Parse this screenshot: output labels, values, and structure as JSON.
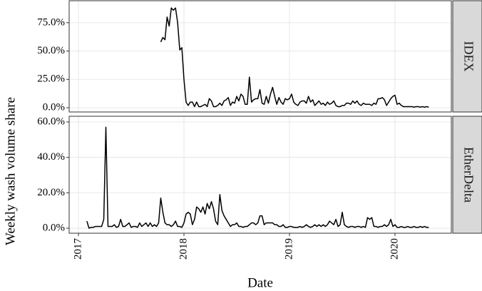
{
  "chart_data": [
    {
      "type": "line",
      "facet": "IDEX",
      "ylabel": "Weekly wash volume share",
      "color": "#000000",
      "grid": true,
      "xlim": [
        2016.912,
        2020.534
      ],
      "xticks": [
        2017,
        2018,
        2019,
        2020
      ],
      "ylim": [
        -3.75,
        94.4
      ],
      "yticks": [
        {
          "value": 0,
          "label": "0.0%"
        },
        {
          "value": 25,
          "label": "25.0%"
        },
        {
          "value": 50,
          "label": "50.0%"
        },
        {
          "value": 75,
          "label": "75.0%"
        }
      ],
      "x": [
        2017.78,
        2017.8,
        2017.82,
        2017.84,
        2017.86,
        2017.88,
        2017.9,
        2017.92,
        2017.94,
        2017.96,
        2017.98,
        2018,
        2018.02,
        2018.04,
        2018.06,
        2018.08,
        2018.1,
        2018.12,
        2018.14,
        2018.16,
        2018.18,
        2018.2,
        2018.22,
        2018.24,
        2018.26,
        2018.28,
        2018.3,
        2018.32,
        2018.34,
        2018.36,
        2018.38,
        2018.4,
        2018.42,
        2018.44,
        2018.46,
        2018.48,
        2018.5,
        2018.52,
        2018.54,
        2018.56,
        2018.58,
        2018.6,
        2018.62,
        2018.64,
        2018.66,
        2018.68,
        2018.7,
        2018.72,
        2018.74,
        2018.76,
        2018.78,
        2018.8,
        2018.82,
        2018.84,
        2018.86,
        2018.88,
        2018.9,
        2018.92,
        2018.94,
        2018.96,
        2018.98,
        2019,
        2019.02,
        2019.04,
        2019.06,
        2019.08,
        2019.1,
        2019.12,
        2019.14,
        2019.16,
        2019.18,
        2019.2,
        2019.22,
        2019.24,
        2019.26,
        2019.28,
        2019.3,
        2019.32,
        2019.34,
        2019.36,
        2019.38,
        2019.4,
        2019.42,
        2019.44,
        2019.46,
        2019.48,
        2019.5,
        2019.52,
        2019.54,
        2019.56,
        2019.58,
        2019.6,
        2019.62,
        2019.64,
        2019.66,
        2019.68,
        2019.7,
        2019.72,
        2019.74,
        2019.76,
        2019.78,
        2019.8,
        2019.82,
        2019.84,
        2019.86,
        2019.88,
        2019.9,
        2019.92,
        2019.94,
        2019.96,
        2019.98,
        2020,
        2020.02,
        2020.04,
        2020.06,
        2020.08,
        2020.1,
        2020.12,
        2020.14,
        2020.16,
        2020.18,
        2020.2,
        2020.22,
        2020.24,
        2020.26,
        2020.28,
        2020.3,
        2020.32
      ],
      "values": [
        58,
        62,
        60,
        80,
        72,
        88,
        86,
        88,
        75,
        51,
        53,
        25,
        5,
        2,
        5,
        5,
        1,
        5,
        1,
        1,
        2,
        3,
        1,
        8,
        6,
        1,
        1,
        2,
        4,
        2,
        6,
        7,
        9,
        2,
        5,
        4,
        10,
        6,
        12,
        10,
        3,
        3,
        27,
        5,
        7,
        8,
        8,
        16,
        4,
        3,
        10,
        4,
        12,
        18,
        10,
        3,
        9,
        5,
        3,
        8,
        7,
        8,
        12,
        5,
        3,
        2,
        5,
        6,
        6,
        4,
        10,
        5,
        7,
        2,
        4,
        6,
        3,
        4,
        2,
        5,
        3,
        4,
        6,
        2,
        1,
        1,
        2,
        2,
        4,
        4,
        3,
        6,
        4,
        6,
        3,
        2,
        4,
        3,
        3,
        3,
        2,
        4,
        3,
        8,
        8,
        9,
        7,
        2,
        5,
        8,
        10,
        11,
        3,
        4,
        2,
        1,
        1,
        1,
        1,
        1,
        0.5,
        1,
        1,
        0.5,
        1,
        0.5,
        1,
        0.5
      ]
    },
    {
      "type": "line",
      "facet": "EtherDelta",
      "xlabel": "Date",
      "color": "#000000",
      "grid": true,
      "xlim": [
        2016.912,
        2020.534
      ],
      "xticks": [
        2017,
        2018,
        2019,
        2020
      ],
      "ylim": [
        -2.82,
        63.2
      ],
      "yticks": [
        {
          "value": 0,
          "label": "0.0%"
        },
        {
          "value": 20,
          "label": "20.0%"
        },
        {
          "value": 40,
          "label": "40.0%"
        },
        {
          "value": 60,
          "label": "60.0%"
        }
      ],
      "x": [
        2017.08,
        2017.1,
        2017.12,
        2017.14,
        2017.16,
        2017.18,
        2017.2,
        2017.22,
        2017.24,
        2017.26,
        2017.28,
        2017.3,
        2017.32,
        2017.34,
        2017.36,
        2017.38,
        2017.4,
        2017.42,
        2017.44,
        2017.46,
        2017.48,
        2017.5,
        2017.52,
        2017.54,
        2017.56,
        2017.58,
        2017.6,
        2017.62,
        2017.64,
        2017.66,
        2017.68,
        2017.7,
        2017.72,
        2017.74,
        2017.76,
        2017.78,
        2017.8,
        2017.82,
        2017.84,
        2017.86,
        2017.88,
        2017.9,
        2017.92,
        2017.94,
        2017.96,
        2017.98,
        2018,
        2018.02,
        2018.04,
        2018.06,
        2018.08,
        2018.1,
        2018.12,
        2018.14,
        2018.16,
        2018.18,
        2018.2,
        2018.22,
        2018.24,
        2018.26,
        2018.28,
        2018.3,
        2018.32,
        2018.34,
        2018.36,
        2018.38,
        2018.4,
        2018.42,
        2018.44,
        2018.46,
        2018.48,
        2018.5,
        2018.52,
        2018.54,
        2018.56,
        2018.58,
        2018.6,
        2018.62,
        2018.64,
        2018.66,
        2018.68,
        2018.7,
        2018.72,
        2018.74,
        2018.76,
        2018.78,
        2018.8,
        2018.82,
        2018.84,
        2018.86,
        2018.88,
        2018.9,
        2018.92,
        2018.94,
        2018.96,
        2018.98,
        2019,
        2019.02,
        2019.04,
        2019.06,
        2019.08,
        2019.1,
        2019.12,
        2019.14,
        2019.16,
        2019.18,
        2019.2,
        2019.22,
        2019.24,
        2019.26,
        2019.28,
        2019.3,
        2019.32,
        2019.34,
        2019.36,
        2019.38,
        2019.4,
        2019.42,
        2019.44,
        2019.46,
        2019.48,
        2019.5,
        2019.52,
        2019.54,
        2019.56,
        2019.58,
        2019.6,
        2019.62,
        2019.64,
        2019.66,
        2019.68,
        2019.7,
        2019.72,
        2019.74,
        2019.76,
        2019.78,
        2019.8,
        2019.82,
        2019.84,
        2019.86,
        2019.88,
        2019.9,
        2019.92,
        2019.94,
        2019.96,
        2019.98,
        2020,
        2020.02,
        2020.04,
        2020.06,
        2020.08,
        2020.1,
        2020.12,
        2020.14,
        2020.16,
        2020.18,
        2020.2,
        2020.22,
        2020.24,
        2020.26,
        2020.28,
        2020.3,
        2020.32
      ],
      "values": [
        4,
        0,
        0.5,
        0.5,
        1,
        1,
        1,
        1,
        5,
        57,
        1,
        1,
        1,
        2,
        0.5,
        1,
        5,
        1,
        1,
        2,
        3,
        0.5,
        1,
        1,
        0.5,
        3,
        1,
        2,
        3,
        1,
        3,
        1,
        2,
        1,
        3,
        17,
        9,
        3,
        2,
        2,
        1,
        2,
        4,
        1,
        1,
        0.5,
        3,
        8,
        9,
        8,
        2,
        5,
        12,
        11,
        9,
        12,
        8,
        14,
        11,
        15,
        11,
        4,
        2,
        19,
        10,
        7,
        5,
        3,
        1,
        2,
        2,
        3,
        1,
        1,
        0.5,
        1,
        1,
        2,
        3,
        3,
        2,
        3,
        7,
        7,
        2,
        3,
        3,
        3,
        3,
        2,
        2,
        1,
        1,
        2,
        0.5,
        0.5,
        1,
        1,
        0.5,
        0.5,
        0.5,
        1,
        0.5,
        1,
        2,
        1,
        0.5,
        1,
        2,
        1,
        2,
        1,
        2,
        1,
        2,
        4,
        3,
        2,
        5,
        1,
        2,
        9,
        2,
        1,
        0.5,
        1,
        1,
        0.5,
        1,
        1,
        0.5,
        1,
        0.5,
        6,
        5,
        6,
        1,
        1,
        0.5,
        1,
        1,
        2,
        1,
        2,
        5,
        1,
        2,
        0.5,
        0.5,
        1,
        0.5,
        0.5,
        1,
        0.5,
        0.5,
        1,
        0.5,
        0.5,
        1,
        0.5,
        1,
        0.5,
        0.5
      ]
    }
  ]
}
